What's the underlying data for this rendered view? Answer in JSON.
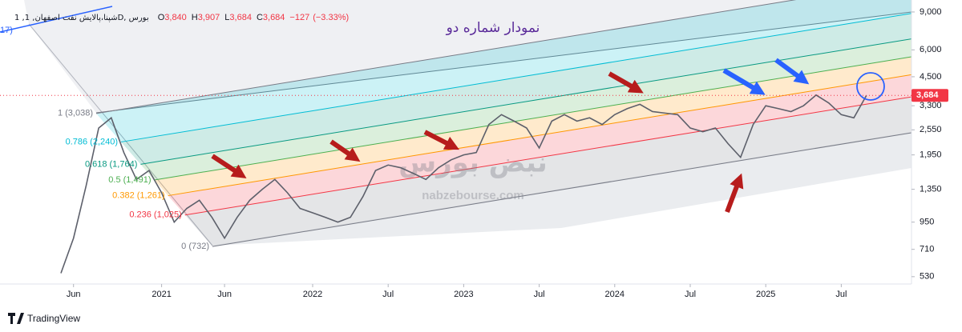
{
  "chart_data": {
    "type": "line",
    "title": "نمودار شماره دو",
    "categories": [
      null,
      "Jun",
      null,
      null,
      null,
      null,
      null,
      null,
      "2021",
      null,
      null,
      null,
      null,
      "Jun",
      null,
      null,
      null,
      null,
      null,
      null,
      "2022",
      null,
      null,
      null,
      null,
      null,
      "Jul",
      null,
      null,
      null,
      null,
      null,
      "2023",
      null,
      null,
      null,
      null,
      null,
      "Jul",
      null,
      null,
      null,
      null,
      null,
      "2024",
      null,
      null,
      null,
      null,
      null,
      "Jul",
      null,
      null,
      null,
      null,
      null,
      "2025",
      null,
      null,
      null,
      null,
      null,
      "Jul",
      null,
      null
    ],
    "values": [
      550,
      800,
      1400,
      2600,
      2900,
      2000,
      1500,
      1650,
      1300,
      950,
      1100,
      1200,
      1000,
      800,
      1000,
      1200,
      1350,
      1500,
      1300,
      1100,
      1050,
      1000,
      950,
      1000,
      1250,
      1650,
      1750,
      1700,
      1600,
      1500,
      1700,
      1850,
      1950,
      2000,
      2700,
      3000,
      2800,
      2600,
      2100,
      2800,
      3000,
      2800,
      2900,
      2700,
      3000,
      3200,
      3350,
      3100,
      3050,
      3000,
      2600,
      2500,
      2600,
      2200,
      1900,
      2700,
      3300,
      3200,
      3100,
      3300,
      3700,
      3400,
      3000,
      2900,
      3684
    ],
    "color": "#5d606b",
    "log_scale": true,
    "ylim": [
      490,
      9800
    ],
    "yticks": [
      530,
      710,
      950,
      {
        "value": 1350,
        "label": "1,350"
      },
      {
        "value": 1950,
        "label": "1,950"
      },
      {
        "value": 2550,
        "label": "2,550"
      },
      {
        "value": 3300,
        "label": "3,300"
      },
      {
        "value": 4500,
        "label": "4,500"
      },
      {
        "value": 6000,
        "label": "6,000"
      },
      {
        "value": 9000,
        "label": "9,000"
      }
    ],
    "last_price": {
      "value": 3684,
      "label": "3,684"
    },
    "fib_levels": [
      {
        "level": 1,
        "value": 3038,
        "label": "1 (3,038)",
        "color": "#787b86"
      },
      {
        "level": 0.786,
        "value": 2240,
        "label": "0.786 (2,240)",
        "color": "#00bcd4"
      },
      {
        "level": 0.618,
        "value": 1764,
        "label": "0.618 (1,764)",
        "color": "#089981"
      },
      {
        "level": 0.5,
        "value": 1491,
        "label": "0.5 (1,491)",
        "color": "#4caf50"
      },
      {
        "level": 0.382,
        "value": 1261,
        "label": "0.382 (1,261)",
        "color": "#ff9800"
      },
      {
        "level": 0.236,
        "value": 1025,
        "label": "0.236 (1,025)",
        "color": "#f23645"
      },
      {
        "level": 0,
        "value": 732,
        "label": "0 (732)",
        "color": "#787b86"
      }
    ],
    "watermark": {
      "logo": "نبض بورس",
      "url": "nabzebourse.com"
    }
  },
  "legend": {
    "cut_text": "17)",
    "symbol": "1 ,شپنا،پالایش نفت اصفهان, 1D, بورس",
    "items": [
      {
        "key": "O",
        "value": {
          "value": 3840,
          "label": "3,840"
        }
      },
      {
        "key": "H",
        "value": {
          "value": 3907,
          "label": "3,907"
        }
      },
      {
        "key": "L",
        "value": {
          "value": 3684,
          "label": "3,684"
        }
      },
      {
        "key": "C",
        "value": {
          "value": 3684,
          "label": "3,684"
        }
      }
    ],
    "change": {
      "value": -127,
      "label": "−127"
    },
    "change_percent": {
      "value": -3.33,
      "label": "(−3.33%)"
    }
  },
  "footer": {
    "brand": "TradingView"
  }
}
